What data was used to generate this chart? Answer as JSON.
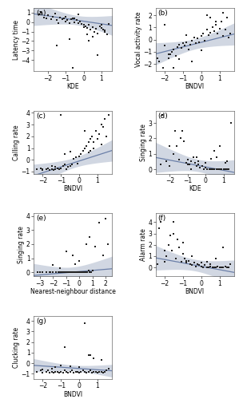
{
  "panels": [
    {
      "label": "(a)",
      "ylabel": "Latency time",
      "xlabel": "KDE",
      "xlim": [
        -2.8,
        1.6
      ],
      "ylim": [
        -5.2,
        1.5
      ],
      "yticks": [
        -4,
        -3,
        -2,
        -1,
        0,
        1
      ],
      "xticks": [
        -2,
        -1,
        0,
        1
      ],
      "slope": -0.28,
      "intercept": 0.1,
      "ci_scale": 1.8,
      "scatter_x": [
        -2.5,
        -2.2,
        -2.0,
        -1.8,
        -1.7,
        -1.5,
        -1.4,
        -1.3,
        -1.2,
        -1.1,
        -1.0,
        -0.9,
        -0.8,
        -0.7,
        -0.6,
        -0.5,
        -0.4,
        -0.3,
        -0.2,
        -0.1,
        0.0,
        0.1,
        0.2,
        0.3,
        0.4,
        0.5,
        0.6,
        0.7,
        0.8,
        0.9,
        1.0,
        1.1,
        1.2,
        1.3,
        1.4,
        -2.4,
        -1.6,
        -1.0,
        -0.5,
        0.0,
        0.5,
        1.0,
        0.3,
        -0.8,
        0.8,
        -0.3,
        -1.5,
        0.2,
        -2.1,
        1.2,
        -0.6
      ],
      "scatter_y": [
        0.8,
        0.5,
        0.7,
        0.3,
        0.6,
        0.2,
        -0.1,
        0.5,
        0.3,
        0.4,
        0.1,
        0.2,
        -0.1,
        0.3,
        0.4,
        0.0,
        0.2,
        -0.1,
        0.1,
        -0.2,
        -0.3,
        -0.4,
        -0.6,
        -0.3,
        -0.8,
        -0.5,
        -1.0,
        -0.7,
        -1.2,
        -0.4,
        -0.3,
        -0.8,
        -1.0,
        -1.3,
        -0.2,
        1.1,
        0.9,
        0.6,
        0.4,
        -0.5,
        -1.5,
        -0.6,
        -2.0,
        -1.8,
        -3.5,
        0.8,
        -2.5,
        -1.3,
        0.4,
        -0.9,
        -4.8
      ]
    },
    {
      "label": "(b)",
      "ylabel": "Vocal activity rate",
      "xlabel": "BNDVI",
      "xlim": [
        -2.5,
        1.8
      ],
      "ylim": [
        -2.6,
        2.6
      ],
      "yticks": [
        -2,
        -1,
        0,
        1,
        2
      ],
      "xticks": [
        -2,
        -1,
        0,
        1
      ],
      "slope": 0.38,
      "intercept": -0.22,
      "ci_scale": 1.8,
      "scatter_x": [
        -2.4,
        -2.1,
        -2.0,
        -1.8,
        -1.7,
        -1.6,
        -1.5,
        -1.4,
        -1.3,
        -1.2,
        -1.1,
        -1.0,
        -0.9,
        -0.8,
        -0.7,
        -0.6,
        -0.5,
        -0.4,
        -0.3,
        -0.2,
        -0.1,
        0.0,
        0.1,
        0.2,
        0.3,
        0.4,
        0.5,
        0.6,
        0.7,
        0.8,
        0.9,
        1.0,
        1.1,
        1.2,
        1.3,
        1.4,
        1.5,
        -1.5,
        -0.5,
        0.3,
        0.8,
        -1.2,
        0.5,
        -0.8,
        1.2,
        -2.0,
        0.0,
        -2.3,
        -1.8,
        1.6
      ],
      "scatter_y": [
        -1.5,
        -2.3,
        -0.5,
        -1.5,
        -1.2,
        -1.0,
        -0.8,
        -1.3,
        -0.6,
        -0.4,
        -0.7,
        -0.3,
        -0.5,
        -0.2,
        -0.8,
        -0.4,
        -0.1,
        0.2,
        -0.3,
        0.1,
        -0.2,
        0.3,
        0.5,
        -0.1,
        0.8,
        0.4,
        0.6,
        1.0,
        0.7,
        1.2,
        0.5,
        0.9,
        1.5,
        0.3,
        0.8,
        1.8,
        0.2,
        -2.3,
        -1.8,
        2.0,
        1.5,
        -1.6,
        1.8,
        0.4,
        2.2,
        1.2,
        -0.9,
        -1.8,
        -1.2,
        0.5
      ]
    },
    {
      "label": "(c)",
      "ylabel": "Calling rate",
      "xlabel": "BNDVI",
      "xlim": [
        -2.5,
        1.8
      ],
      "ylim": [
        -1.2,
        4.2
      ],
      "yticks": [
        -1,
        0,
        1,
        2,
        3,
        4
      ],
      "xticks": [
        -2,
        -1,
        0,
        1
      ],
      "slope": 0.5,
      "intercept": -0.1,
      "ci_scale": 1.5,
      "scatter_x": [
        -2.3,
        -2.1,
        -2.0,
        -1.8,
        -1.7,
        -1.6,
        -1.5,
        -1.4,
        -1.3,
        -1.2,
        -1.1,
        -1.0,
        -0.9,
        -0.8,
        -0.7,
        -0.6,
        -0.5,
        -0.4,
        -0.3,
        -0.2,
        -0.1,
        0.0,
        0.1,
        0.2,
        0.3,
        0.4,
        0.5,
        0.6,
        0.7,
        0.8,
        0.9,
        1.0,
        1.1,
        1.2,
        1.3,
        1.4,
        1.5,
        -1.0,
        0.0,
        0.5,
        -1.5,
        0.8,
        -0.5,
        1.2,
        -0.8,
        0.3,
        -2.0,
        -1.3,
        0.6,
        1.6
      ],
      "scatter_y": [
        -0.8,
        -0.7,
        -0.9,
        -0.8,
        -0.7,
        -0.9,
        -0.8,
        -0.9,
        -0.8,
        -0.7,
        -0.8,
        -0.7,
        -0.5,
        -0.4,
        -0.8,
        -0.6,
        -0.5,
        -0.4,
        0.1,
        0.2,
        -0.3,
        0.3,
        0.5,
        0.8,
        1.0,
        1.2,
        1.5,
        0.8,
        2.0,
        1.5,
        2.5,
        1.8,
        2.2,
        3.0,
        2.8,
        3.5,
        2.0,
        3.8,
        0.3,
        0.6,
        -0.5,
        1.0,
        0.7,
        1.3,
        0.5,
        2.5,
        -0.8,
        -0.6,
        1.8,
        3.8
      ]
    },
    {
      "label": "(d)",
      "ylabel": "Singing rate",
      "xlabel": "KDE",
      "xlim": [
        -2.8,
        1.6
      ],
      "ylim": [
        -0.3,
        3.8
      ],
      "yticks": [
        0,
        1,
        2,
        3
      ],
      "xticks": [
        -2,
        -1,
        0,
        1
      ],
      "slope": -0.22,
      "intercept": 0.15,
      "ci_scale": 1.8,
      "scatter_x": [
        -2.5,
        -2.2,
        -2.0,
        -1.8,
        -1.6,
        -1.5,
        -1.4,
        -1.3,
        -1.2,
        -1.1,
        -1.0,
        -0.9,
        -0.8,
        -0.7,
        -0.6,
        -0.5,
        -0.4,
        -0.3,
        -0.2,
        -0.1,
        0.0,
        0.1,
        0.2,
        0.3,
        0.4,
        0.5,
        0.6,
        0.7,
        0.8,
        0.9,
        1.0,
        1.1,
        1.2,
        1.3,
        1.4,
        -1.5,
        0.0,
        0.5,
        -1.0,
        0.8,
        -0.5,
        1.2,
        -0.8,
        0.3,
        -2.0,
        -2.4,
        -1.7,
        0.6,
        1.1,
        -0.4
      ],
      "scatter_y": [
        0.3,
        0.5,
        1.5,
        1.0,
        1.5,
        0.6,
        2.0,
        2.5,
        1.8,
        0.4,
        0.6,
        0.3,
        0.5,
        0.8,
        0.4,
        0.2,
        0.3,
        0.1,
        0.2,
        0.0,
        0.1,
        0.0,
        0.0,
        0.0,
        0.0,
        0.0,
        0.0,
        0.0,
        0.0,
        0.0,
        0.0,
        0.0,
        0.0,
        0.0,
        3.0,
        0.6,
        0.4,
        1.2,
        0.3,
        1.5,
        0.8,
        0.5,
        0.0,
        0.7,
        0.2,
        3.5,
        2.5,
        0.8,
        0.4,
        0.5
      ]
    },
    {
      "label": "(e)",
      "ylabel": "Singing rate",
      "xlabel": "Nearest-neighbour distance",
      "xlim": [
        -3.5,
        2.5
      ],
      "ylim": [
        -0.3,
        4.2
      ],
      "yticks": [
        0,
        1,
        2,
        3,
        4
      ],
      "xticks": [
        -3,
        -2,
        -1,
        0,
        1,
        2
      ],
      "slope": 0.08,
      "intercept": 0.05,
      "ci_scale": 1.5,
      "scatter_x": [
        -3.2,
        -3.0,
        -2.8,
        -2.5,
        -2.3,
        -2.2,
        -2.0,
        -1.8,
        -1.6,
        -1.5,
        -1.4,
        -1.3,
        -1.2,
        -1.1,
        -1.0,
        -0.9,
        -0.8,
        -0.7,
        -0.6,
        -0.5,
        -0.4,
        -0.3,
        -0.2,
        -0.1,
        0.0,
        0.1,
        0.2,
        0.3,
        0.4,
        0.5,
        0.6,
        0.7,
        0.8,
        0.9,
        1.0,
        1.5,
        2.0,
        2.2,
        -1.0,
        0.5,
        -2.0,
        0.0,
        -0.5,
        1.2,
        -1.5,
        0.8,
        -0.3,
        -2.8,
        -3.0,
        1.8
      ],
      "scatter_y": [
        0.0,
        0.0,
        0.0,
        0.0,
        0.0,
        0.0,
        0.0,
        0.0,
        0.0,
        0.0,
        0.0,
        0.0,
        0.0,
        0.0,
        0.0,
        0.0,
        0.0,
        0.0,
        0.0,
        0.0,
        0.0,
        0.0,
        0.0,
        0.0,
        0.0,
        0.0,
        0.0,
        0.0,
        0.0,
        0.0,
        0.0,
        0.1,
        0.0,
        0.0,
        0.1,
        3.5,
        3.8,
        2.0,
        1.5,
        2.0,
        0.5,
        0.8,
        1.2,
        1.8,
        0.3,
        2.5,
        0.6,
        0.0,
        0.0,
        1.2
      ]
    },
    {
      "label": "(f)",
      "ylabel": "Alarm rate",
      "xlabel": "BNDVI",
      "xlim": [
        -2.5,
        1.8
      ],
      "ylim": [
        -0.8,
        4.8
      ],
      "yticks": [
        0,
        1,
        2,
        3,
        4
      ],
      "xticks": [
        -2,
        -1,
        0,
        1
      ],
      "slope": -0.3,
      "intercept": 0.1,
      "ci_scale": 2.0,
      "scatter_x": [
        -2.4,
        -2.2,
        -2.0,
        -1.9,
        -1.8,
        -1.6,
        -1.5,
        -1.4,
        -1.3,
        -1.2,
        -1.1,
        -1.0,
        -0.9,
        -0.8,
        -0.7,
        -0.6,
        -0.5,
        -0.4,
        -0.3,
        -0.2,
        -0.1,
        0.0,
        0.1,
        0.2,
        0.3,
        0.4,
        0.5,
        0.6,
        0.7,
        0.8,
        0.9,
        1.0,
        1.1,
        1.2,
        1.3,
        1.4,
        1.5,
        -1.5,
        -0.5,
        0.3,
        -2.0,
        0.8,
        -1.0,
        0.5,
        -0.8,
        1.2,
        0.0,
        -2.3,
        -1.7,
        1.6
      ],
      "scatter_y": [
        0.3,
        4.0,
        0.5,
        1.0,
        2.0,
        1.5,
        3.0,
        0.8,
        2.5,
        1.8,
        0.5,
        1.2,
        0.8,
        0.4,
        0.6,
        0.3,
        0.2,
        0.4,
        0.1,
        0.3,
        0.2,
        0.1,
        0.0,
        0.2,
        0.0,
        0.0,
        0.1,
        0.0,
        0.0,
        0.0,
        0.1,
        0.0,
        0.0,
        0.0,
        0.1,
        0.0,
        0.0,
        4.0,
        1.0,
        0.5,
        1.5,
        0.8,
        2.2,
        0.3,
        0.6,
        1.8,
        0.4,
        3.5,
        2.8,
        0.3
      ]
    },
    {
      "label": "(g)",
      "ylabel": "Clucking rate",
      "xlabel": "BNDVI",
      "xlim": [
        -2.5,
        1.8
      ],
      "ylim": [
        -1.5,
        4.5
      ],
      "yticks": [
        -1,
        0,
        1,
        2,
        3,
        4
      ],
      "xticks": [
        -2,
        -1,
        0,
        1
      ],
      "slope": -0.12,
      "intercept": -0.5,
      "ci_scale": 1.2,
      "scatter_x": [
        -2.3,
        -2.1,
        -2.0,
        -1.8,
        -1.7,
        -1.6,
        -1.5,
        -1.4,
        -1.3,
        -1.2,
        -1.1,
        -1.0,
        -0.9,
        -0.8,
        -0.7,
        -0.6,
        -0.5,
        -0.4,
        -0.3,
        -0.2,
        -0.1,
        0.0,
        0.1,
        0.2,
        0.3,
        0.4,
        0.5,
        0.6,
        0.7,
        0.8,
        0.9,
        1.0,
        1.1,
        1.2,
        1.3,
        1.4,
        1.5,
        -1.5,
        -0.5,
        0.3,
        0.8,
        -1.0,
        0.5,
        -0.8,
        1.2,
        0.0,
        -2.0,
        -1.3,
        0.6,
        1.6
      ],
      "scatter_y": [
        -0.8,
        -0.7,
        -0.9,
        -0.8,
        -0.7,
        -0.9,
        -0.8,
        -0.9,
        -0.8,
        -0.8,
        -0.9,
        -0.8,
        -0.9,
        -0.7,
        -0.8,
        -0.9,
        -0.8,
        -0.7,
        -0.9,
        -0.8,
        -0.8,
        -0.9,
        -0.8,
        -0.7,
        -0.8,
        -0.9,
        -0.8,
        -0.7,
        -0.9,
        -0.8,
        -0.8,
        -0.9,
        -0.8,
        -0.8,
        -0.9,
        -0.8,
        -0.7,
        -0.5,
        -0.3,
        3.8,
        0.5,
        -0.2,
        0.8,
        1.5,
        0.3,
        -0.4,
        -0.6,
        -0.4,
        0.8,
        -0.5
      ]
    }
  ],
  "line_color": "#6b7fa8",
  "ci_color": "#9aa8c0",
  "scatter_color": "#222222",
  "scatter_size": 2.5,
  "background_color": "#ffffff",
  "ci_alpha": 0.45,
  "font_size": 5.5,
  "label_font_size": 6.5
}
